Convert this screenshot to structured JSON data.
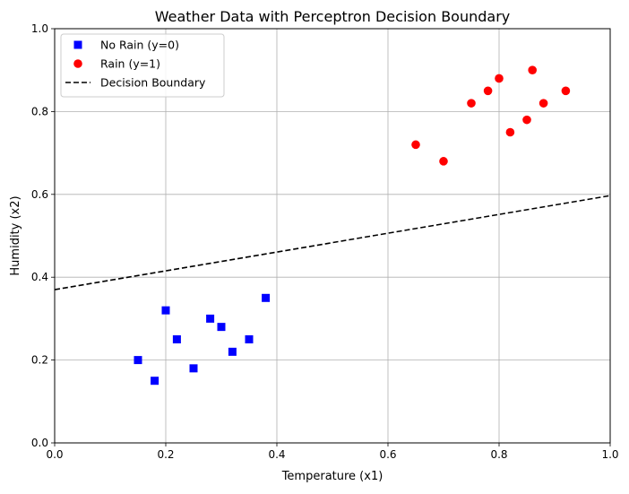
{
  "chart_data": {
    "type": "scatter",
    "title": "Weather Data with Perceptron Decision Boundary",
    "xlabel": "Temperature (x1)",
    "ylabel": "Humidity (x2)",
    "xlim": [
      0.0,
      1.0
    ],
    "ylim": [
      0.0,
      1.0
    ],
    "xticks": [
      "0.0",
      "0.2",
      "0.4",
      "0.6",
      "0.8",
      "1.0"
    ],
    "yticks": [
      "0.0",
      "0.2",
      "0.4",
      "0.6",
      "0.8",
      "1.0"
    ],
    "grid": true,
    "legend_position": "upper-left",
    "series": [
      {
        "name": "No Rain (y=0)",
        "marker": "square",
        "color": "#0000ff",
        "points": [
          [
            0.15,
            0.2
          ],
          [
            0.18,
            0.15
          ],
          [
            0.2,
            0.32
          ],
          [
            0.22,
            0.25
          ],
          [
            0.25,
            0.18
          ],
          [
            0.28,
            0.3
          ],
          [
            0.3,
            0.28
          ],
          [
            0.32,
            0.22
          ],
          [
            0.35,
            0.25
          ],
          [
            0.38,
            0.35
          ]
        ]
      },
      {
        "name": "Rain (y=1)",
        "marker": "circle",
        "color": "#ff0000",
        "points": [
          [
            0.65,
            0.72
          ],
          [
            0.7,
            0.68
          ],
          [
            0.75,
            0.82
          ],
          [
            0.78,
            0.85
          ],
          [
            0.8,
            0.88
          ],
          [
            0.82,
            0.75
          ],
          [
            0.85,
            0.78
          ],
          [
            0.86,
            0.9
          ],
          [
            0.88,
            0.82
          ],
          [
            0.92,
            0.85
          ]
        ]
      }
    ],
    "lines": [
      {
        "name": "Decision Boundary",
        "style": "dashed",
        "color": "#000000",
        "points": [
          [
            0.0,
            0.37
          ],
          [
            1.0,
            0.597
          ]
        ]
      }
    ]
  }
}
